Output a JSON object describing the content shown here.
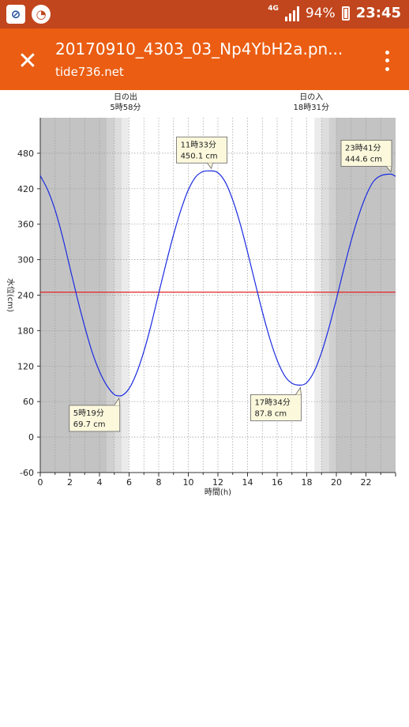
{
  "statusbar": {
    "network": "4G",
    "battery": "94%",
    "time": "23:45",
    "colors": {
      "bar": "#c1451d"
    }
  },
  "toolbar": {
    "title": "20170910_4303_03_Np4YbH2a.pn...",
    "url": "tide736.net",
    "colors": {
      "bar": "#ea5d12"
    },
    "close_icon": "close-icon",
    "menu_icon": "more-vert-icon"
  },
  "chart_data": {
    "type": "line",
    "xlabel": "時間(h)",
    "ylabel": "水位(cm)",
    "xlim": [
      0,
      24
    ],
    "ylim": [
      -60,
      540
    ],
    "xticks": [
      0,
      2,
      4,
      6,
      8,
      10,
      12,
      14,
      16,
      18,
      20,
      22
    ],
    "yticks": [
      -60,
      0,
      60,
      120,
      180,
      240,
      300,
      360,
      420,
      480
    ],
    "grid": true,
    "reference_line": {
      "value": 245,
      "color": "#e02020"
    },
    "series": [
      {
        "color": "#1a2be0",
        "x": [
          0,
          0.5,
          1,
          1.5,
          2,
          2.5,
          3,
          3.5,
          4,
          4.5,
          5,
          5.32,
          5.5,
          6,
          6.5,
          7,
          7.5,
          8,
          8.5,
          9,
          9.5,
          10,
          10.5,
          11,
          11.55,
          12,
          12.5,
          13,
          13.5,
          14,
          14.5,
          15,
          15.5,
          16,
          16.5,
          17,
          17.57,
          18,
          18.5,
          19,
          19.5,
          20,
          20.5,
          21,
          21.5,
          22,
          22.5,
          23,
          23.68,
          24
        ],
        "y": [
          442,
          418,
          384,
          339,
          287,
          235,
          187,
          144,
          111,
          87,
          72,
          69.7,
          70,
          82,
          108,
          145,
          191,
          243,
          294,
          342,
          384,
          418,
          440,
          449,
          450.1,
          447,
          431,
          401,
          361,
          313,
          262,
          212,
          167,
          130,
          104,
          91,
          87.8,
          92,
          111,
          143,
          185,
          233,
          284,
          332,
          374,
          408,
          432,
          442,
          444.6,
          441
        ]
      }
    ],
    "sun_events": [
      {
        "label": "日の出",
        "time": "5時58分",
        "hour": 5.97
      },
      {
        "label": "日の入",
        "time": "18時31分",
        "hour": 18.52
      }
    ],
    "bands": [
      {
        "start": 0,
        "end": 4.5,
        "shade": "#c3c3c3"
      },
      {
        "start": 4.5,
        "end": 5.0,
        "shade": "#d0d0d0"
      },
      {
        "start": 5.0,
        "end": 5.5,
        "shade": "#dddddd"
      },
      {
        "start": 5.5,
        "end": 5.97,
        "shade": "#ebebeb"
      },
      {
        "start": 18.52,
        "end": 19.0,
        "shade": "#ebebeb"
      },
      {
        "start": 19.0,
        "end": 19.5,
        "shade": "#dddddd"
      },
      {
        "start": 19.5,
        "end": 20.0,
        "shade": "#d0d0d0"
      },
      {
        "start": 20.0,
        "end": 24,
        "shade": "#c3c3c3"
      }
    ],
    "annotations": [
      {
        "time": "11時33分",
        "value": "450.1 cm",
        "x": 11.55,
        "y": 450.1,
        "place": "above"
      },
      {
        "time": "23時41分",
        "value": "444.6 cm",
        "x": 23.68,
        "y": 444.6,
        "place": "above-left"
      },
      {
        "time": "5時19分",
        "value": "69.7 cm",
        "x": 5.32,
        "y": 69.7,
        "place": "below-left"
      },
      {
        "time": "17時34分",
        "value": "87.8 cm",
        "x": 17.57,
        "y": 87.8,
        "place": "below-left"
      }
    ]
  }
}
